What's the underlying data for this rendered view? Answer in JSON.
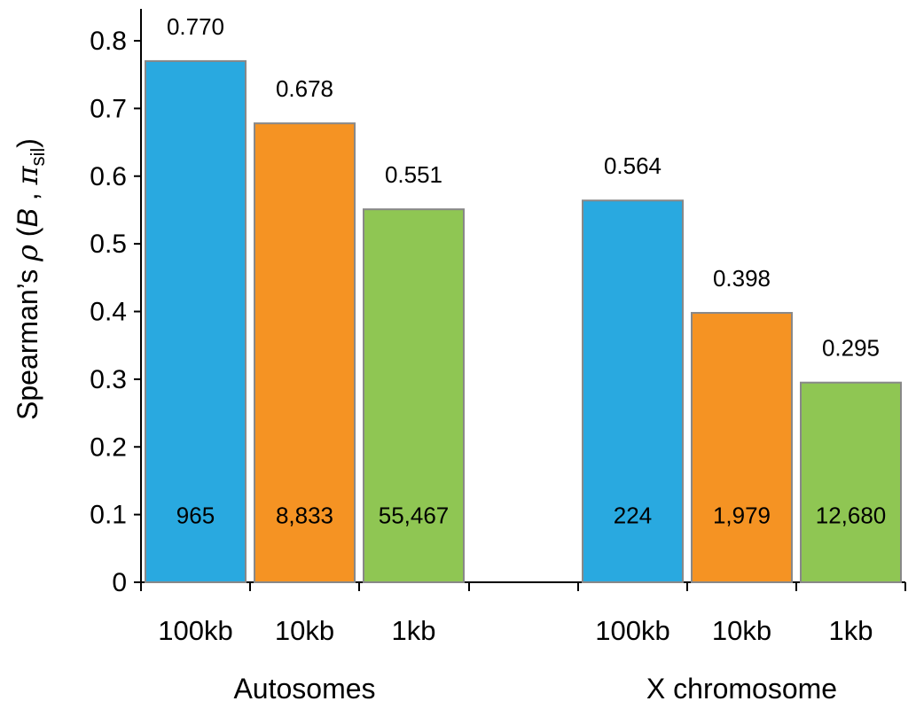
{
  "chart_data": {
    "type": "bar",
    "ylabel": {
      "prefix": "Spearman’s ",
      "rho": "ρ",
      "open": " (",
      "B": "B",
      "comma": " , ",
      "pi": "π",
      "sub": "sil",
      "close": ")"
    },
    "ylim": [
      0,
      0.8
    ],
    "yticks": [
      "0",
      "0.1",
      "0.2",
      "0.3",
      "0.4",
      "0.5",
      "0.6",
      "0.7",
      "0.8"
    ],
    "grid": false,
    "legend": "none",
    "groups": [
      {
        "label": "Autosomes",
        "bars": [
          {
            "category": "100kb",
            "value": 0.77,
            "value_label": "0.770",
            "count": "965",
            "color": "#29a9e0"
          },
          {
            "category": "10kb",
            "value": 0.678,
            "value_label": "0.678",
            "count": "8,833",
            "color": "#f59323"
          },
          {
            "category": "1kb",
            "value": 0.551,
            "value_label": "0.551",
            "count": "55,467",
            "color": "#8fc653"
          }
        ]
      },
      {
        "label": "X chromosome",
        "bars": [
          {
            "category": "100kb",
            "value": 0.564,
            "value_label": "0.564",
            "count": "224",
            "color": "#29a9e0"
          },
          {
            "category": "10kb",
            "value": 0.398,
            "value_label": "0.398",
            "count": "1,979",
            "color": "#f59323"
          },
          {
            "category": "1kb",
            "value": 0.295,
            "value_label": "0.295",
            "count": "12,680",
            "color": "#8fc653"
          }
        ]
      }
    ],
    "bar_edge_color": "#888888",
    "axis_color": "#000000"
  }
}
